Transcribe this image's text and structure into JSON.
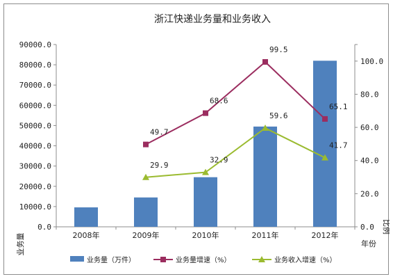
{
  "chart_data": {
    "type": "bar",
    "title": "浙江快递业务量和业务收入",
    "categories": [
      "2008年",
      "2009年",
      "2010年",
      "2011年",
      "2012年"
    ],
    "xlabel": "年份",
    "ylabel": "业务量",
    "y2label": "比例",
    "ylim": [
      0,
      90000
    ],
    "y_ticks": [
      "0.0",
      "10000.0",
      "20000.0",
      "30000.0",
      "40000.0",
      "50000.0",
      "60000.0",
      "70000.0",
      "80000.0",
      "90000.0"
    ],
    "y2lim": [
      0,
      110
    ],
    "y2_ticks": [
      "0.0",
      "20.0",
      "40.0",
      "60.0",
      "80.0",
      "100.0"
    ],
    "grid": false,
    "legend": "bottom",
    "series": [
      {
        "name": "业务量（万件）",
        "type": "bar",
        "axis": "left",
        "color": "#4f81bd",
        "values": [
          9600,
          14500,
          24500,
          49500,
          82000
        ],
        "labels": []
      },
      {
        "name": "业务量增速（%）",
        "type": "line",
        "axis": "right",
        "color": "#9b2d5f",
        "marker": "square",
        "values": [
          null,
          49.7,
          68.6,
          99.5,
          65.1
        ],
        "labels": [
          "",
          "49.7",
          "68.6",
          "99.5",
          "65.1"
        ]
      },
      {
        "name": "业务收入增速（%）",
        "type": "line",
        "axis": "right",
        "color": "#9bbb30",
        "marker": "triangle",
        "values": [
          null,
          29.9,
          32.9,
          59.6,
          41.7
        ],
        "labels": [
          "",
          "29.9",
          "32.9",
          "59.6",
          "41.7"
        ]
      }
    ]
  }
}
